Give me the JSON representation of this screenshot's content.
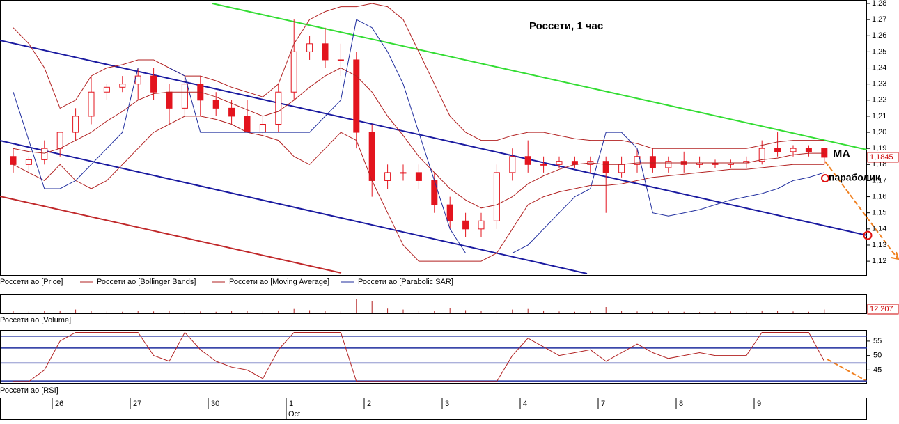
{
  "chart_data": [
    {
      "type": "candlestick",
      "title": "Россети,  1 час",
      "name": "Россети ао [Price]",
      "color": "#e3141e",
      "days": [
        [
          [
            1.185,
            1.19,
            1.175,
            1.18
          ],
          [
            1.18,
            1.185,
            1.175,
            1.183
          ],
          [
            1.183,
            1.195,
            1.18,
            1.19
          ]
        ],
        [
          [
            1.19,
            1.2,
            1.185,
            1.2
          ],
          [
            1.2,
            1.215,
            1.195,
            1.21
          ],
          [
            1.21,
            1.235,
            1.205,
            1.225
          ],
          [
            1.225,
            1.23,
            1.22,
            1.228
          ],
          [
            1.228,
            1.235,
            1.225,
            1.23
          ]
        ],
        [
          [
            1.23,
            1.24,
            1.22,
            1.235
          ],
          [
            1.235,
            1.24,
            1.22,
            1.225
          ],
          [
            1.225,
            1.23,
            1.205,
            1.215
          ],
          [
            1.215,
            1.235,
            1.21,
            1.23
          ],
          [
            1.23,
            1.235,
            1.21,
            1.22
          ]
        ],
        [
          [
            1.22,
            1.225,
            1.21,
            1.215
          ],
          [
            1.215,
            1.22,
            1.205,
            1.21
          ],
          [
            1.21,
            1.22,
            1.2,
            1.2
          ],
          [
            1.2,
            1.21,
            1.198,
            1.205
          ],
          [
            1.205,
            1.23,
            1.2,
            1.225
          ]
        ],
        [
          [
            1.225,
            1.27,
            1.22,
            1.25
          ],
          [
            1.25,
            1.26,
            1.245,
            1.255
          ],
          [
            1.255,
            1.265,
            1.24,
            1.245
          ],
          [
            1.245,
            1.255,
            1.235,
            1.245
          ],
          [
            1.245,
            1.25,
            1.19,
            1.2
          ]
        ],
        [
          [
            1.2,
            1.205,
            1.16,
            1.17
          ],
          [
            1.17,
            1.18,
            1.165,
            1.175
          ],
          [
            1.175,
            1.18,
            1.17,
            1.175
          ],
          [
            1.175,
            1.18,
            1.165,
            1.17
          ],
          [
            1.17,
            1.175,
            1.15,
            1.155
          ]
        ],
        [
          [
            1.155,
            1.16,
            1.14,
            1.145
          ],
          [
            1.145,
            1.15,
            1.135,
            1.14
          ],
          [
            1.14,
            1.15,
            1.135,
            1.145
          ],
          [
            1.145,
            1.18,
            1.14,
            1.175
          ],
          [
            1.175,
            1.19,
            1.17,
            1.185
          ]
        ],
        [
          [
            1.185,
            1.195,
            1.175,
            1.18
          ],
          [
            1.18,
            1.185,
            1.175,
            1.18
          ],
          [
            1.18,
            1.185,
            1.178,
            1.182
          ],
          [
            1.182,
            1.185,
            1.178,
            1.18
          ],
          [
            1.18,
            1.185,
            1.175,
            1.182
          ]
        ],
        [
          [
            1.182,
            1.185,
            1.15,
            1.175
          ],
          [
            1.175,
            1.185,
            1.172,
            1.18
          ],
          [
            1.18,
            1.19,
            1.175,
            1.185
          ],
          [
            1.185,
            1.19,
            1.175,
            1.178
          ],
          [
            1.178,
            1.185,
            1.175,
            1.182
          ]
        ],
        [
          [
            1.182,
            1.188,
            1.175,
            1.18
          ],
          [
            1.18,
            1.185,
            1.178,
            1.181
          ],
          [
            1.181,
            1.183,
            1.178,
            1.18
          ],
          [
            1.18,
            1.183,
            1.178,
            1.181
          ],
          [
            1.181,
            1.185,
            1.178,
            1.182
          ]
        ],
        [
          [
            1.182,
            1.195,
            1.18,
            1.19
          ],
          [
            1.19,
            1.2,
            1.185,
            1.188
          ],
          [
            1.188,
            1.192,
            1.185,
            1.19
          ],
          [
            1.19,
            1.192,
            1.185,
            1.188
          ],
          [
            1.19,
            1.19,
            1.18,
            1.1845
          ]
        ]
      ],
      "last_label": "1,1845",
      "overlays": [
        {
          "name": "Россети ао [Bollinger Bands]",
          "color": "#b22222",
          "upper": [
            1.265,
            1.255,
            1.24,
            1.215,
            1.22,
            1.235,
            1.24,
            1.242,
            1.245,
            1.245,
            1.24,
            1.235,
            1.235,
            1.232,
            1.228,
            1.225,
            1.222,
            1.23,
            1.255,
            1.27,
            1.275,
            1.278,
            1.278,
            1.28,
            1.278,
            1.27,
            1.25,
            1.23,
            1.21,
            1.2,
            1.195,
            1.195,
            1.198,
            1.2,
            1.2,
            1.198,
            1.196,
            1.195,
            1.195,
            1.195,
            1.193,
            1.19,
            1.19,
            1.19,
            1.19,
            1.19,
            1.19,
            1.19,
            1.192,
            1.194,
            1.195,
            1.195,
            1.195
          ],
          "lower": [
            1.18,
            1.175,
            1.17,
            1.18,
            1.17,
            1.165,
            1.17,
            1.18,
            1.19,
            1.2,
            1.205,
            1.21,
            1.21,
            1.208,
            1.205,
            1.2,
            1.198,
            1.195,
            1.185,
            1.18,
            1.19,
            1.2,
            1.195,
            1.17,
            1.15,
            1.13,
            1.12,
            1.12,
            1.12,
            1.12,
            1.12,
            1.125,
            1.14,
            1.155,
            1.16,
            1.163,
            1.165,
            1.167,
            1.167,
            1.168,
            1.17,
            1.172,
            1.173,
            1.174,
            1.175,
            1.176,
            1.177,
            1.177,
            1.178,
            1.179,
            1.18,
            1.18,
            1.18
          ]
        },
        {
          "name": "Россети ао [Moving Average]",
          "color": "#b22222",
          "values": [
            1.19,
            1.188,
            1.187,
            1.19,
            1.195,
            1.2,
            1.207,
            1.213,
            1.22,
            1.224,
            1.225,
            1.225,
            1.225,
            1.222,
            1.218,
            1.214,
            1.21,
            1.213,
            1.22,
            1.228,
            1.235,
            1.24,
            1.235,
            1.225,
            1.21,
            1.198,
            1.185,
            1.175,
            1.165,
            1.158,
            1.153,
            1.155,
            1.16,
            1.168,
            1.173,
            1.177,
            1.18,
            1.181,
            1.18,
            1.18,
            1.181,
            1.181,
            1.181,
            1.181,
            1.181,
            1.181,
            1.181,
            1.181,
            1.183,
            1.184,
            1.186,
            1.187,
            1.187
          ]
        },
        {
          "name": "Россети ао [Parabolic SAR]",
          "color": "#1f2d9e",
          "values": [
            1.225,
            1.195,
            1.165,
            1.165,
            1.17,
            1.18,
            1.19,
            1.2,
            1.24,
            1.24,
            1.24,
            1.235,
            1.2,
            1.2,
            1.2,
            1.2,
            1.2,
            1.2,
            1.2,
            1.2,
            1.21,
            1.22,
            1.27,
            1.265,
            1.25,
            1.23,
            1.2,
            1.17,
            1.14,
            1.125,
            1.125,
            1.125,
            1.125,
            1.13,
            1.14,
            1.15,
            1.16,
            1.165,
            1.2,
            1.2,
            1.19,
            1.15,
            1.148,
            1.15,
            1.152,
            1.155,
            1.158,
            1.16,
            1.162,
            1.165,
            1.17,
            1.172,
            1.175
          ]
        }
      ],
      "annotations": [
        "MA",
        "параболик"
      ],
      "ylim": [
        1.1114,
        1.28
      ],
      "yticks": [
        {
          "value": 1.28,
          "label": "1,28"
        },
        {
          "value": 1.27,
          "label": "1,27"
        },
        {
          "value": 1.26,
          "label": "1,26"
        },
        {
          "value": 1.25,
          "label": "1,25"
        },
        {
          "value": 1.24,
          "label": "1,24"
        },
        {
          "value": 1.23,
          "label": "1,23"
        },
        {
          "value": 1.22,
          "label": "1,22"
        },
        {
          "value": 1.21,
          "label": "1,21"
        },
        {
          "value": 1.2,
          "label": "1,20"
        },
        {
          "value": 1.19,
          "label": "1,19"
        },
        {
          "value": 1.18,
          "label": "1,18"
        },
        {
          "value": 1.17,
          "label": "1,17"
        },
        {
          "value": 1.16,
          "label": "1,16"
        },
        {
          "value": 1.15,
          "label": "1,15"
        },
        {
          "value": 1.14,
          "label": "1,14"
        },
        {
          "value": 1.13,
          "label": "1,13"
        },
        {
          "value": 1.12,
          "label": "1,12"
        }
      ]
    },
    {
      "type": "bar",
      "name": "Россети ао [Volume]",
      "color": "#b22222",
      "values": [
        8000,
        6000,
        7000,
        9000,
        12000,
        8000,
        6000,
        5000,
        7000,
        6000,
        9000,
        5000,
        6000,
        5000,
        7000,
        8000,
        6000,
        9000,
        14000,
        10000,
        7000,
        6000,
        45000,
        40000,
        15000,
        12000,
        9000,
        8000,
        16000,
        10000,
        8000,
        9000,
        12000,
        14000,
        9000,
        6000,
        5000,
        7000,
        20000,
        8000,
        6000,
        5000,
        6000,
        5000,
        4000,
        5000,
        6000,
        5000,
        9000,
        7000,
        6000,
        5000,
        12207
      ],
      "last_label": "12 207",
      "ylim": [
        0,
        60000
      ]
    },
    {
      "type": "line",
      "name": "Россети ао [RSI]",
      "color": "#b22222",
      "values": [
        41,
        41,
        45,
        55,
        58,
        58,
        58,
        58,
        58,
        50,
        48,
        58,
        52,
        48,
        46,
        45,
        42,
        52,
        58,
        58,
        58,
        58,
        41,
        41,
        41,
        41,
        41,
        41,
        41,
        41,
        41,
        41,
        50,
        56,
        53,
        50,
        51,
        52,
        48,
        51,
        54,
        51,
        49,
        50,
        51,
        50,
        50,
        50,
        58,
        58,
        58,
        58,
        48
      ],
      "levels": [
        56.7,
        52.6,
        47.4,
        41.2
      ],
      "levels_color": "#1f2d9e",
      "ylim": [
        40.5,
        58.6
      ],
      "yticks": [
        45,
        50,
        55
      ]
    }
  ],
  "x_axis": {
    "days": [
      null,
      "26",
      "27",
      "30",
      "1",
      "2",
      "3",
      "4",
      "7",
      "8",
      "9"
    ],
    "months": [
      null,
      null,
      null,
      null,
      "Oct",
      null,
      null,
      null,
      null,
      null,
      null
    ]
  }
}
